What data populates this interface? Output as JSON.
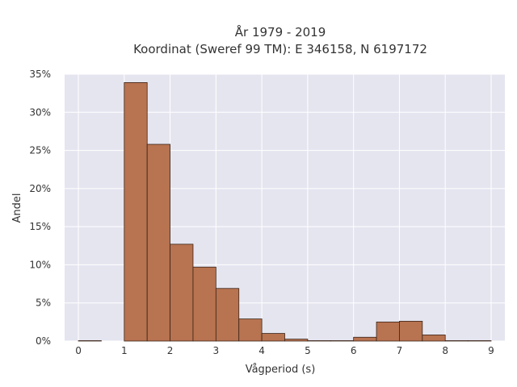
{
  "chart_data": {
    "type": "bar",
    "title_lines": [
      "År 1979 - 2019",
      "Koordinat (Sweref 99 TM): E 346158, N 6197172"
    ],
    "xlabel": "Vågperiod (s)",
    "ylabel": "Andel",
    "x_ticks": [
      "0",
      "1",
      "2",
      "3",
      "4",
      "5",
      "6",
      "7",
      "8",
      "9"
    ],
    "y_ticks": [
      "0%",
      "5%",
      "10%",
      "15%",
      "20%",
      "25%",
      "30%",
      "35%"
    ],
    "xlim": [
      -0.3,
      9.3
    ],
    "ylim": [
      0,
      35
    ],
    "bin_width": 0.5,
    "bins": [
      {
        "x0": 0.0,
        "value": 0.05
      },
      {
        "x0": 0.5,
        "value": 0.0
      },
      {
        "x0": 1.0,
        "value": 33.9
      },
      {
        "x0": 1.5,
        "value": 25.8
      },
      {
        "x0": 2.0,
        "value": 12.7
      },
      {
        "x0": 2.5,
        "value": 9.7
      },
      {
        "x0": 3.0,
        "value": 6.9
      },
      {
        "x0": 3.5,
        "value": 2.9
      },
      {
        "x0": 4.0,
        "value": 1.0
      },
      {
        "x0": 4.5,
        "value": 0.25
      },
      {
        "x0": 5.0,
        "value": 0.05
      },
      {
        "x0": 5.5,
        "value": 0.05
      },
      {
        "x0": 6.0,
        "value": 0.5
      },
      {
        "x0": 6.5,
        "value": 2.5
      },
      {
        "x0": 7.0,
        "value": 2.6
      },
      {
        "x0": 7.5,
        "value": 0.8
      },
      {
        "x0": 8.0,
        "value": 0.05
      },
      {
        "x0": 8.5,
        "value": 0.05
      }
    ],
    "grid": true,
    "colors": {
      "bar": "#b87350",
      "bar_edge": "#3a2418",
      "plot_bg": "#e5e5f0",
      "grid": "#ffffff"
    }
  }
}
